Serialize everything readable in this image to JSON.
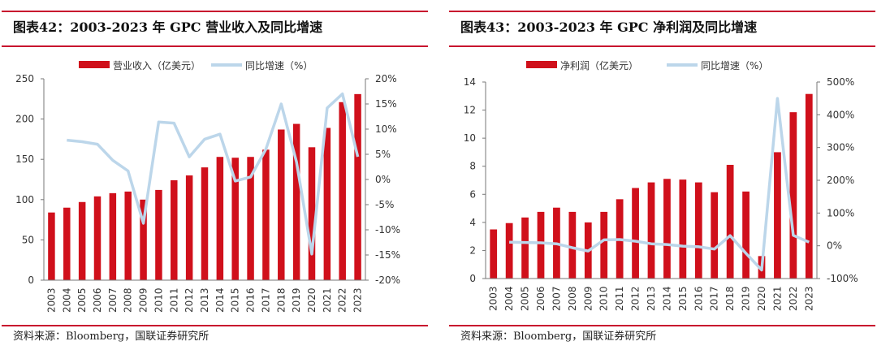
{
  "chart_data": [
    {
      "type": "bar+line",
      "title": "图表42：2003-2023 年 GPC 营业收入及同比增速",
      "source": "资料来源：Bloomberg，国联证券研究所",
      "categories": [
        "2003",
        "2004",
        "2005",
        "2006",
        "2007",
        "2008",
        "2009",
        "2010",
        "2011",
        "2012",
        "2013",
        "2014",
        "2015",
        "2016",
        "2017",
        "2018",
        "2019",
        "2020",
        "2021",
        "2022",
        "2023"
      ],
      "series": [
        {
          "name": "营业收入（亿美元）",
          "type": "bar",
          "axis": "left",
          "color": "#d0101b",
          "values": [
            84,
            90,
            97,
            104,
            108,
            110,
            100,
            112,
            124,
            130,
            140,
            153,
            152,
            153,
            162,
            187,
            194,
            165,
            189,
            221,
            231
          ]
        },
        {
          "name": "同比增速（%）",
          "type": "line",
          "axis": "right",
          "color": "#bcd6ea",
          "values": [
            null,
            7.8,
            7.5,
            7.0,
            3.8,
            1.7,
            -8.7,
            11.4,
            11.2,
            4.5,
            8.0,
            9.0,
            -0.3,
            0.5,
            6.0,
            15.0,
            3.5,
            -14.8,
            14.2,
            17.0,
            4.5
          ]
        }
      ],
      "ylim_left": [
        0,
        250
      ],
      "yticks_left": [
        "0",
        "50",
        "100",
        "150",
        "200",
        "250"
      ],
      "ylim_right": [
        -20,
        20
      ],
      "yticks_right": [
        "-20%",
        "-15%",
        "-10%",
        "-5%",
        "0%",
        "5%",
        "10%",
        "15%",
        "20%"
      ],
      "grid": false,
      "legend": "top"
    },
    {
      "type": "bar+line",
      "title": "图表43：2003-2023 年 GPC 净利润及同比增速",
      "source": "资料来源：Bloomberg，国联证券研究所",
      "categories": [
        "2003",
        "2004",
        "2005",
        "2006",
        "2007",
        "2008",
        "2009",
        "2010",
        "2011",
        "2012",
        "2013",
        "2014",
        "2015",
        "2016",
        "2017",
        "2018",
        "2019",
        "2020",
        "2021",
        "2022",
        "2023"
      ],
      "series": [
        {
          "name": "净利润（亿美元）",
          "type": "bar",
          "axis": "left",
          "color": "#d0101b",
          "values": [
            3.5,
            3.95,
            4.35,
            4.75,
            5.05,
            4.75,
            4.0,
            4.75,
            5.65,
            6.45,
            6.85,
            7.1,
            7.05,
            6.85,
            6.15,
            8.1,
            6.2,
            1.6,
            9.0,
            11.85,
            13.15
          ]
        },
        {
          "name": "同比增速（%）",
          "type": "line",
          "axis": "right",
          "color": "#bcd6ea",
          "values": [
            null,
            11,
            10,
            9,
            6,
            -6,
            -16,
            18,
            19,
            14,
            6,
            4,
            -1,
            -3,
            -10,
            31,
            -23,
            -74,
            450,
            32,
            11
          ]
        }
      ],
      "ylim_left": [
        0,
        14
      ],
      "yticks_left": [
        "0",
        "2",
        "4",
        "6",
        "8",
        "10",
        "12",
        "14"
      ],
      "ylim_right": [
        -100,
        500
      ],
      "yticks_right": [
        "-100%",
        "0%",
        "100%",
        "200%",
        "300%",
        "400%",
        "500%"
      ],
      "grid": false,
      "legend": "top"
    }
  ]
}
